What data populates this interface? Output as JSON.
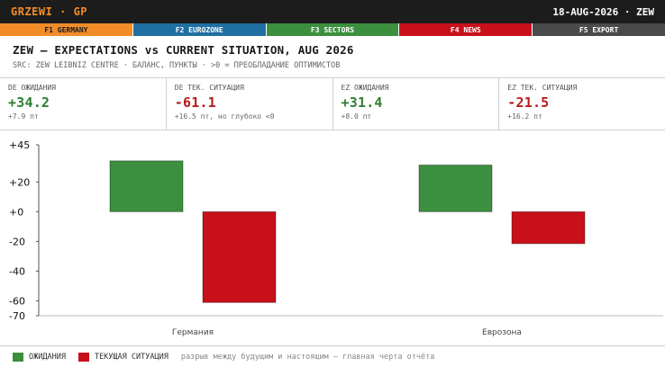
{
  "header": {
    "brand": "GRZEWI",
    "brand_sep": "·",
    "brand_code": "GP",
    "date": "18-AUG-2026 · ZEW"
  },
  "fkeys": [
    {
      "label": "F1 GERMANY"
    },
    {
      "label": "F2 EUROZONE"
    },
    {
      "label": "F3 SECTORS"
    },
    {
      "label": "F4 NEWS"
    },
    {
      "label": "F5 EXPORT"
    }
  ],
  "title": "ZEW — EXPECTATIONS vs CURRENT SITUATION, AUG 2026",
  "subtitle": "SRC: ZEW LEIBNIZ CENTRE · БАЛАНС, ПУНКТЫ · >0 = ПРЕОБЛАДАНИЕ ОПТИМИСТОВ",
  "metrics": [
    {
      "label": "DE ОЖИДАНИЯ",
      "value": "+34.2",
      "note": "+7.9 пт",
      "tone": "pos"
    },
    {
      "label": "DE ТЕК. СИТУАЦИЯ",
      "value": "-61.1",
      "note": "+16.5 пт, но глубоко <0",
      "tone": "neg"
    },
    {
      "label": "EZ ОЖИДАНИЯ",
      "value": "+31.4",
      "note": "+8.0 пт",
      "tone": "pos"
    },
    {
      "label": "EZ ТЕК. СИТУАЦИЯ",
      "value": "-21.5",
      "note": "+16.2 пт",
      "tone": "neg"
    }
  ],
  "chart_data": {
    "type": "bar",
    "categories": [
      "Германия",
      "Еврозона"
    ],
    "series": [
      {
        "name": "ОЖИДАНИЯ",
        "values": [
          34.2,
          31.4
        ],
        "color": "#3b8f3e"
      },
      {
        "name": "ТЕКУЩАЯ СИТУАЦИЯ",
        "values": [
          -61.1,
          -21.5
        ],
        "color": "#c8101a"
      }
    ],
    "ylim": [
      -70,
      45
    ],
    "yticks": [
      45,
      20,
      0,
      -20,
      -40,
      -60,
      -70
    ],
    "ytick_labels": [
      "+45",
      "+20",
      "+0",
      "-20",
      "-40",
      "-60",
      "-70"
    ],
    "grid": false,
    "legend": "bottom-left"
  },
  "legend": {
    "note": "разрыв между будущим и настоящим — главная черта отчёта"
  }
}
